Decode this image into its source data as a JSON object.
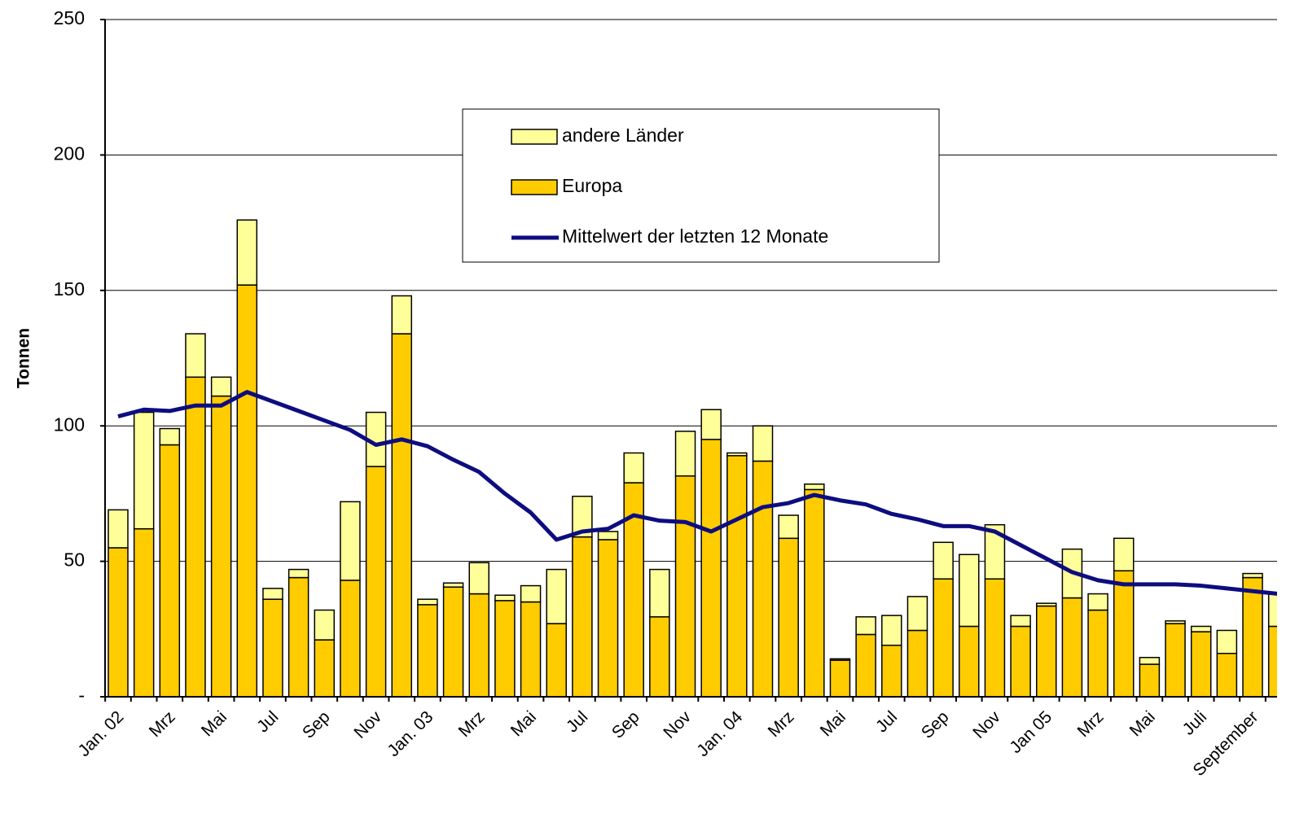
{
  "chart_data": {
    "type": "bar",
    "y_label": "Tonnen",
    "categories": [
      "Jan. 02",
      null,
      "Mrz",
      null,
      "Mai",
      null,
      "Jul",
      null,
      "Sep",
      null,
      "Nov",
      null,
      "Jan. 03",
      null,
      "Mrz",
      null,
      "Mai",
      null,
      "Jul",
      null,
      "Sep",
      null,
      "Nov",
      null,
      "Jan. 04",
      null,
      "Mrz",
      null,
      "Mai",
      null,
      "Jul",
      null,
      "Sep",
      null,
      "Nov",
      null,
      "Jan 05",
      null,
      "Mrz",
      null,
      "Mai",
      null,
      "Juli",
      null,
      "September",
      null
    ],
    "series": [
      {
        "name": "Europa",
        "type": "bar",
        "color": "#ffcc00",
        "values": [
          55,
          62,
          93,
          118,
          111,
          152,
          36,
          44,
          21,
          43,
          85,
          134,
          34,
          40.5,
          38,
          35.5,
          35,
          27,
          59,
          58,
          79,
          29.5,
          81.5,
          95,
          89,
          87,
          58.5,
          76.5,
          13.5,
          23,
          19,
          24.5,
          43.5,
          26,
          43.5,
          26,
          33.5,
          36.5,
          32,
          46.5,
          12,
          27,
          24,
          16,
          44,
          26
        ]
      },
      {
        "name": "andere Länder",
        "type": "bar",
        "color": "#ffff99",
        "values": [
          14,
          43,
          6,
          16,
          7,
          24,
          4,
          3,
          11,
          29,
          20,
          14,
          2,
          1.5,
          11.5,
          2,
          6,
          20,
          15,
          3,
          11,
          17.5,
          16.5,
          11,
          1,
          13,
          8.5,
          2,
          0.5,
          6.5,
          11,
          12.5,
          13.5,
          26.5,
          20,
          4,
          1,
          18,
          6,
          12,
          2.5,
          1,
          2,
          8.5,
          1.5,
          12
        ]
      },
      {
        "name": "Mittelwert der letzten 12 Monate",
        "type": "line",
        "color": "#0d0d80",
        "values": [
          103.5,
          106,
          105.5,
          107.5,
          107.5,
          112.5,
          109,
          105.5,
          102,
          98.5,
          93,
          95,
          92.5,
          87.5,
          83,
          75,
          68,
          58,
          61,
          62,
          67,
          65,
          64.5,
          61,
          65.5,
          70,
          71.5,
          74.5,
          72.5,
          71,
          67.5,
          65.5,
          63,
          63,
          61,
          56,
          51,
          46,
          43,
          41.5,
          41.5,
          41.5,
          41,
          40,
          39,
          38
        ]
      }
    ],
    "ylim": [
      0,
      250
    ],
    "yticks": [
      {
        "value": 0,
        "label": "-"
      },
      50,
      100,
      150,
      200,
      250
    ],
    "grid": true
  }
}
